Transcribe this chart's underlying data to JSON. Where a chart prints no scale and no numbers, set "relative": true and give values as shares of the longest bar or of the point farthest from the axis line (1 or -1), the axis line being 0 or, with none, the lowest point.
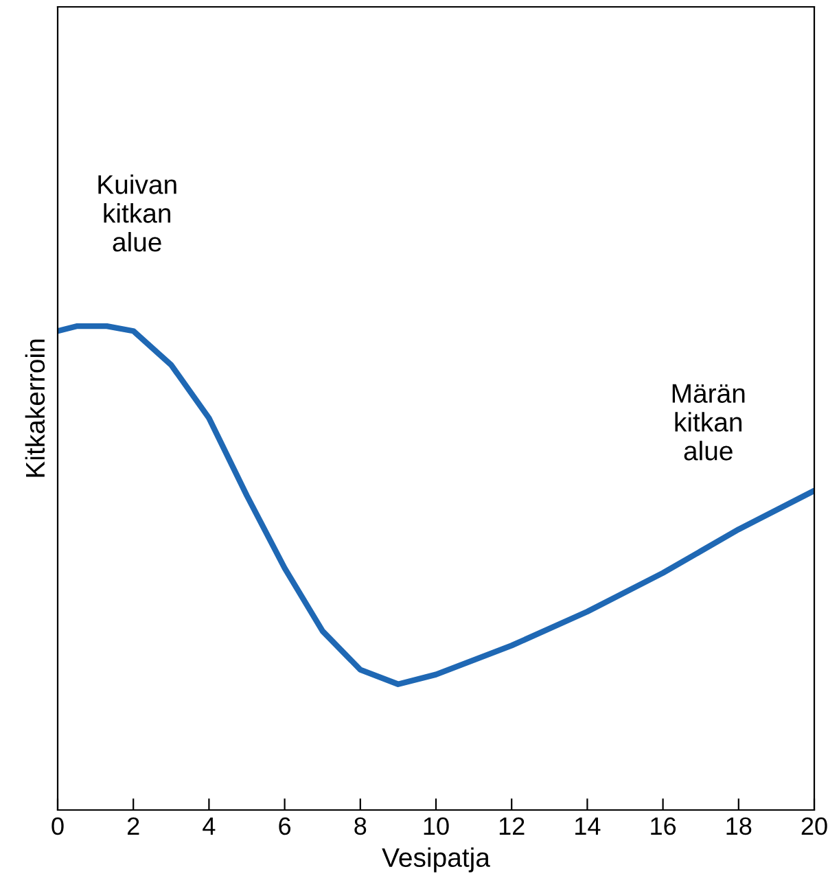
{
  "chart_data": {
    "type": "line",
    "xlabel": "Vesipatja",
    "ylabel": "Kitkakerroin",
    "relative": true,
    "x": [
      0,
      0.5,
      1.3,
      2,
      3,
      4,
      5,
      6,
      7,
      8,
      9,
      10,
      12,
      14,
      16,
      18,
      20
    ],
    "series": [
      {
        "color": "#1f68b4",
        "values": [
          0.99,
          1.0,
          1.0,
          0.99,
          0.92,
          0.81,
          0.65,
          0.5,
          0.37,
          0.29,
          0.26,
          0.28,
          0.34,
          0.41,
          0.49,
          0.58,
          0.66
        ]
      }
    ],
    "xlim": [
      0,
      20
    ],
    "xticks": [
      0,
      2,
      4,
      6,
      8,
      10,
      12,
      14,
      16,
      18,
      20
    ],
    "annotations": [
      "Kuivan\nkitkan\nalue",
      "Märän\nkitkan\nalue"
    ],
    "grid": false,
    "legend": false,
    "marker": "none",
    "line_style": "solid"
  }
}
